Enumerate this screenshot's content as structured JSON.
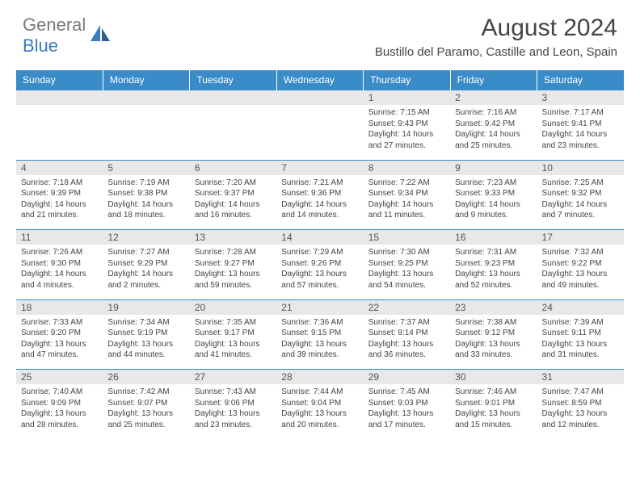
{
  "logo": {
    "gray_text": "General",
    "blue_text": "Blue"
  },
  "title": "August 2024",
  "location": "Bustillo del Paramo, Castille and Leon, Spain",
  "day_headers": [
    "Sunday",
    "Monday",
    "Tuesday",
    "Wednesday",
    "Thursday",
    "Friday",
    "Saturday"
  ],
  "colors": {
    "header_bg": "#3a8cc9",
    "header_text": "#ffffff",
    "daynum_bg": "#e8e8e8",
    "border": "#3a8cc9",
    "logo_blue": "#3a7cbf"
  },
  "weeks": [
    [
      null,
      null,
      null,
      null,
      {
        "n": "1",
        "sr": "7:15 AM",
        "ss": "9:43 PM",
        "dl": "14 hours and 27 minutes."
      },
      {
        "n": "2",
        "sr": "7:16 AM",
        "ss": "9:42 PM",
        "dl": "14 hours and 25 minutes."
      },
      {
        "n": "3",
        "sr": "7:17 AM",
        "ss": "9:41 PM",
        "dl": "14 hours and 23 minutes."
      }
    ],
    [
      {
        "n": "4",
        "sr": "7:18 AM",
        "ss": "9:39 PM",
        "dl": "14 hours and 21 minutes."
      },
      {
        "n": "5",
        "sr": "7:19 AM",
        "ss": "9:38 PM",
        "dl": "14 hours and 18 minutes."
      },
      {
        "n": "6",
        "sr": "7:20 AM",
        "ss": "9:37 PM",
        "dl": "14 hours and 16 minutes."
      },
      {
        "n": "7",
        "sr": "7:21 AM",
        "ss": "9:36 PM",
        "dl": "14 hours and 14 minutes."
      },
      {
        "n": "8",
        "sr": "7:22 AM",
        "ss": "9:34 PM",
        "dl": "14 hours and 11 minutes."
      },
      {
        "n": "9",
        "sr": "7:23 AM",
        "ss": "9:33 PM",
        "dl": "14 hours and 9 minutes."
      },
      {
        "n": "10",
        "sr": "7:25 AM",
        "ss": "9:32 PM",
        "dl": "14 hours and 7 minutes."
      }
    ],
    [
      {
        "n": "11",
        "sr": "7:26 AM",
        "ss": "9:30 PM",
        "dl": "14 hours and 4 minutes."
      },
      {
        "n": "12",
        "sr": "7:27 AM",
        "ss": "9:29 PM",
        "dl": "14 hours and 2 minutes."
      },
      {
        "n": "13",
        "sr": "7:28 AM",
        "ss": "9:27 PM",
        "dl": "13 hours and 59 minutes."
      },
      {
        "n": "14",
        "sr": "7:29 AM",
        "ss": "9:26 PM",
        "dl": "13 hours and 57 minutes."
      },
      {
        "n": "15",
        "sr": "7:30 AM",
        "ss": "9:25 PM",
        "dl": "13 hours and 54 minutes."
      },
      {
        "n": "16",
        "sr": "7:31 AM",
        "ss": "9:23 PM",
        "dl": "13 hours and 52 minutes."
      },
      {
        "n": "17",
        "sr": "7:32 AM",
        "ss": "9:22 PM",
        "dl": "13 hours and 49 minutes."
      }
    ],
    [
      {
        "n": "18",
        "sr": "7:33 AM",
        "ss": "9:20 PM",
        "dl": "13 hours and 47 minutes."
      },
      {
        "n": "19",
        "sr": "7:34 AM",
        "ss": "9:19 PM",
        "dl": "13 hours and 44 minutes."
      },
      {
        "n": "20",
        "sr": "7:35 AM",
        "ss": "9:17 PM",
        "dl": "13 hours and 41 minutes."
      },
      {
        "n": "21",
        "sr": "7:36 AM",
        "ss": "9:15 PM",
        "dl": "13 hours and 39 minutes."
      },
      {
        "n": "22",
        "sr": "7:37 AM",
        "ss": "9:14 PM",
        "dl": "13 hours and 36 minutes."
      },
      {
        "n": "23",
        "sr": "7:38 AM",
        "ss": "9:12 PM",
        "dl": "13 hours and 33 minutes."
      },
      {
        "n": "24",
        "sr": "7:39 AM",
        "ss": "9:11 PM",
        "dl": "13 hours and 31 minutes."
      }
    ],
    [
      {
        "n": "25",
        "sr": "7:40 AM",
        "ss": "9:09 PM",
        "dl": "13 hours and 28 minutes."
      },
      {
        "n": "26",
        "sr": "7:42 AM",
        "ss": "9:07 PM",
        "dl": "13 hours and 25 minutes."
      },
      {
        "n": "27",
        "sr": "7:43 AM",
        "ss": "9:06 PM",
        "dl": "13 hours and 23 minutes."
      },
      {
        "n": "28",
        "sr": "7:44 AM",
        "ss": "9:04 PM",
        "dl": "13 hours and 20 minutes."
      },
      {
        "n": "29",
        "sr": "7:45 AM",
        "ss": "9:03 PM",
        "dl": "13 hours and 17 minutes."
      },
      {
        "n": "30",
        "sr": "7:46 AM",
        "ss": "9:01 PM",
        "dl": "13 hours and 15 minutes."
      },
      {
        "n": "31",
        "sr": "7:47 AM",
        "ss": "8:59 PM",
        "dl": "13 hours and 12 minutes."
      }
    ]
  ],
  "labels": {
    "sunrise": "Sunrise: ",
    "sunset": "Sunset: ",
    "daylight": "Daylight: "
  }
}
